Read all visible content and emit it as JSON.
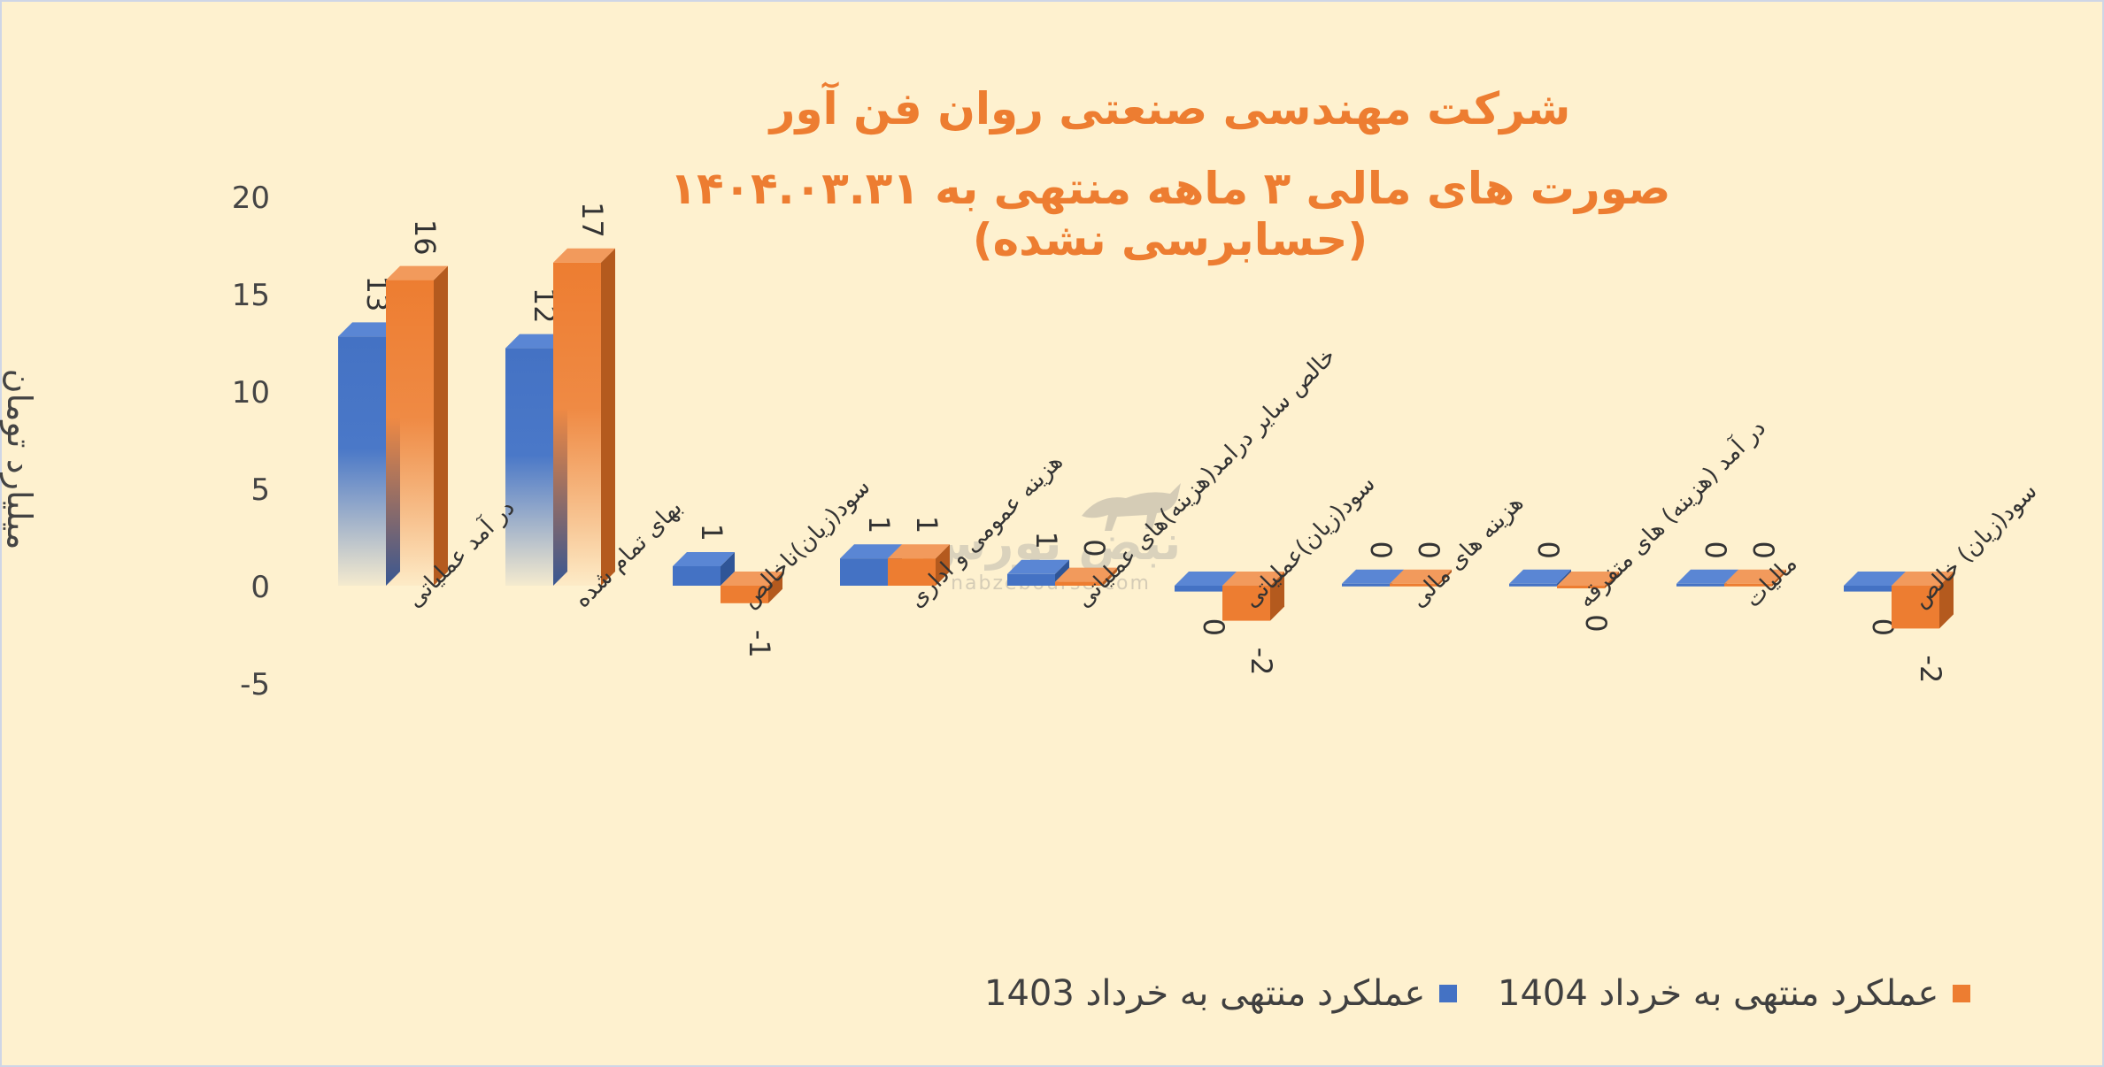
{
  "chart_data": {
    "type": "bar",
    "title": "شرکت مهندسی صنعتی روان فن آور",
    "subtitle": "صورت های مالی ۳ ماهه منتهی به ۱۴۰۴.۰۳.۳۱ (حسابرسی نشده)",
    "ylabel": "میلیارد تومان",
    "xlabel": "",
    "ylim": [
      -5,
      20
    ],
    "yticks": [
      20,
      15,
      10,
      5,
      0,
      -5
    ],
    "categories": [
      "در آمد عملیاتی",
      "بهای تمام شده",
      "سود(زیان)ناخالص",
      "هزینه عمومی و اداری",
      "خالص سایر درامد(هزینه)های عملیاتی",
      "سود(زیان)عملیاتی",
      "هزینه های مالی",
      "در آمد (هزینه) های متفرقه",
      "مالیات",
      "سود(زیان) خالص"
    ],
    "series": [
      {
        "name": "عملکرد منتهی به خرداد 1403",
        "color": "#4472c4",
        "values": [
          12.8,
          12.2,
          1.0,
          1.4,
          0.6,
          -0.3,
          0.1,
          0.1,
          0.1,
          -0.3
        ],
        "labels": [
          "13",
          "12",
          "1",
          "1",
          "1",
          "0",
          "0",
          "0",
          "0",
          "0"
        ]
      },
      {
        "name": "عملکرد منتهی به خرداد 1404",
        "color": "#ed7d31",
        "values": [
          15.7,
          16.6,
          -0.9,
          1.4,
          0.2,
          -1.8,
          0.1,
          -0.1,
          0.1,
          -2.2
        ],
        "labels": [
          "16",
          "17",
          "-1",
          "1",
          "0",
          "-2",
          "0",
          "0",
          "0",
          "-2"
        ]
      }
    ],
    "grid": false,
    "legend_position": "bottom",
    "watermark": {
      "name": "نبض بورس",
      "url_text": "nabzebourse.com",
      "icon": "bull-icon"
    }
  }
}
